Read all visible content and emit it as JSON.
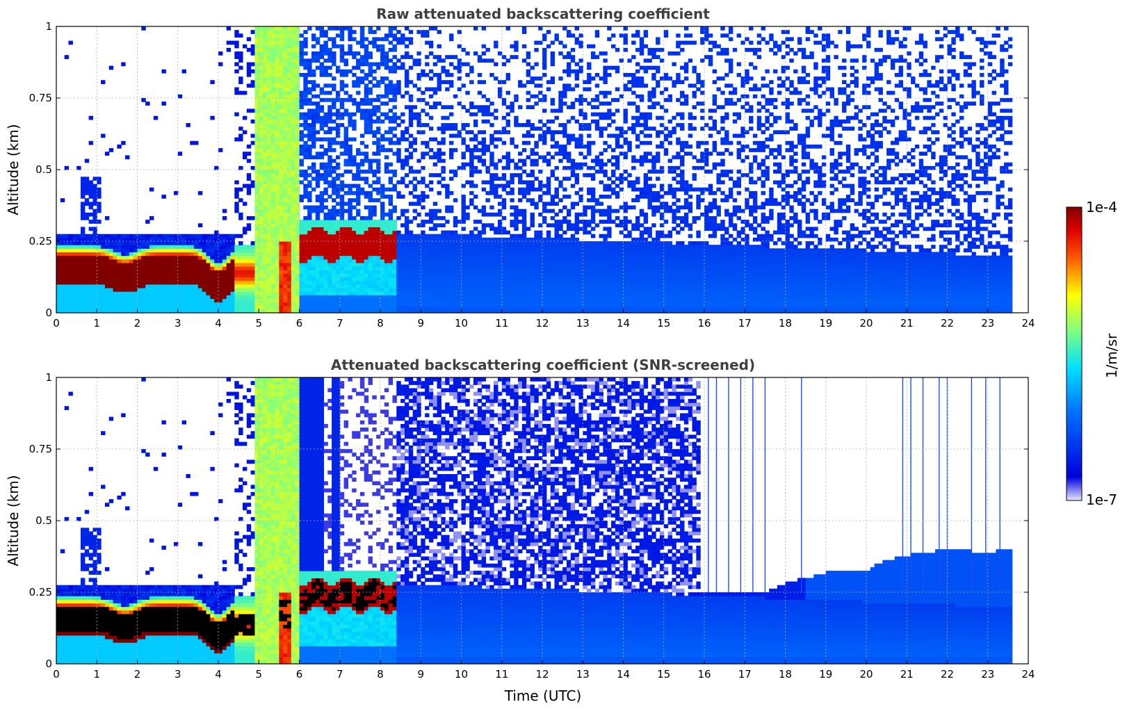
{
  "figure": {
    "xlabel": "Time (UTC)",
    "colorbar": {
      "label": "1/m/sr",
      "max_label": "1e-4",
      "min_label": "1e-7",
      "scale": "log",
      "colormap": "jet"
    }
  },
  "chart_data": [
    {
      "type": "heatmap",
      "title": "Raw attenuated backscattering coefficient",
      "ylabel": "Altitude (km)",
      "xlabel": "",
      "xlim": [
        0,
        24
      ],
      "ylim": [
        0,
        1
      ],
      "x_ticks": [
        "0",
        "1",
        "2",
        "3",
        "4",
        "5",
        "6",
        "7",
        "8",
        "9",
        "10",
        "11",
        "12",
        "13",
        "14",
        "15",
        "16",
        "17",
        "18",
        "19",
        "20",
        "21",
        "22",
        "23",
        "24"
      ],
      "y_ticks": [
        "0",
        "0.25",
        "0.5",
        "0.75",
        "1"
      ],
      "grid": true,
      "data_end_hour": 23.65,
      "features": [
        {
          "name": "fog/low cloud",
          "x": [
            0,
            4.4
          ],
          "y_center": 0.16,
          "y_half_thickness": 0.04,
          "level": 1.0
        },
        {
          "name": "saturated column",
          "x": [
            4.9,
            6.05
          ],
          "y": [
            0,
            1
          ],
          "level": 0.55
        },
        {
          "name": "cloud layer",
          "x": [
            6.3,
            8.35
          ],
          "y_center": 0.24,
          "y_half_thickness": 0.04,
          "level": 0.95
        },
        {
          "name": "boundary layer",
          "x": [
            8.4,
            23.65
          ],
          "y": [
            0,
            0.3
          ],
          "level": 0.25
        }
      ]
    },
    {
      "type": "heatmap",
      "title": "Attenuated backscattering coefficient (SNR-screened)",
      "ylabel": "Altitude (km)",
      "xlabel": "Time (UTC)",
      "xlim": [
        0,
        24
      ],
      "ylim": [
        0,
        1
      ],
      "x_ticks": [
        "0",
        "1",
        "2",
        "3",
        "4",
        "5",
        "6",
        "7",
        "8",
        "9",
        "10",
        "11",
        "12",
        "13",
        "14",
        "15",
        "16",
        "17",
        "18",
        "19",
        "20",
        "21",
        "22",
        "23",
        "24"
      ],
      "y_ticks": [
        "0",
        "0.25",
        "0.5",
        "0.75",
        "1"
      ],
      "grid": true,
      "data_end_hour": 23.65,
      "screened_top_after_16h": [
        [
          15.95,
          0.25
        ],
        [
          17.5,
          0.25
        ],
        [
          18.0,
          0.28
        ],
        [
          18.5,
          0.3
        ],
        [
          19.0,
          0.32
        ],
        [
          20.0,
          0.32
        ],
        [
          20.3,
          0.35
        ],
        [
          21.0,
          0.38
        ],
        [
          22.0,
          0.4
        ],
        [
          23.0,
          0.39
        ],
        [
          23.65,
          0.4
        ]
      ],
      "spike_hours": [
        16.1,
        16.3,
        16.6,
        16.9,
        17.2,
        17.5,
        18.4,
        20.9,
        21.1,
        21.4,
        21.8,
        22.0,
        22.6,
        22.95,
        23.3
      ]
    }
  ]
}
